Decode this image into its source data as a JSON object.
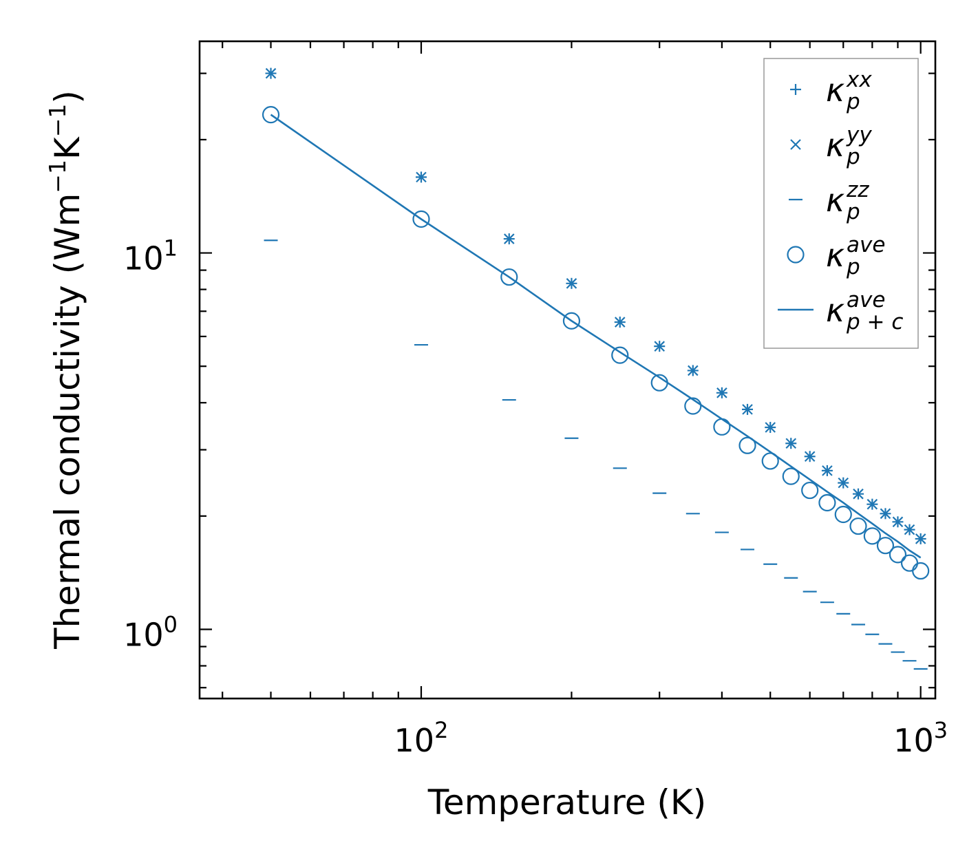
{
  "colors": {
    "series": "#1f77b4",
    "axis": "#000000",
    "legend_border": "#999999"
  },
  "chart_data": {
    "type": "scatter",
    "scale": {
      "x": "log",
      "y": "log"
    },
    "xlabel": "Temperature (K)",
    "ylabel": "Thermal conductivity (Wm⁻¹K⁻¹)",
    "ylabel_parts": {
      "base": "Thermal conductivity (Wm",
      "sup1": "−1",
      "mid": "K",
      "sup2": "−1",
      "end": ")"
    },
    "xlim": [
      36,
      1070
    ],
    "ylim": [
      0.655,
      36.5
    ],
    "xticks": [
      {
        "value": 100,
        "base": "10",
        "exp": "2"
      },
      {
        "value": 1000,
        "base": "10",
        "exp": "3"
      }
    ],
    "yticks": [
      {
        "value": 1,
        "base": "10",
        "exp": "0"
      },
      {
        "value": 10,
        "base": "10",
        "exp": "1"
      }
    ],
    "x": [
      50,
      100,
      150,
      200,
      250,
      300,
      350,
      400,
      450,
      500,
      550,
      600,
      650,
      700,
      750,
      800,
      850,
      900,
      950,
      1000
    ],
    "series": [
      {
        "name": "kappa_p_xx",
        "legend": {
          "base": "κ",
          "sub": "p",
          "sup": "xx"
        },
        "marker": "plus",
        "values": [
          30.0,
          15.9,
          10.9,
          8.3,
          6.55,
          5.65,
          4.87,
          4.25,
          3.84,
          3.44,
          3.12,
          2.88,
          2.64,
          2.45,
          2.29,
          2.15,
          2.03,
          1.93,
          1.84,
          1.74
        ]
      },
      {
        "name": "kappa_p_yy",
        "legend": {
          "base": "κ",
          "sub": "p",
          "sup": "yy"
        },
        "marker": "x",
        "values": [
          30.0,
          15.9,
          10.9,
          8.3,
          6.55,
          5.65,
          4.87,
          4.25,
          3.84,
          3.44,
          3.12,
          2.88,
          2.64,
          2.45,
          2.29,
          2.15,
          2.03,
          1.93,
          1.84,
          1.74
        ]
      },
      {
        "name": "kappa_p_zz",
        "legend": {
          "base": "κ",
          "sub": "p",
          "sup": "zz"
        },
        "marker": "hline",
        "values": [
          10.8,
          5.7,
          4.07,
          3.22,
          2.68,
          2.3,
          2.03,
          1.81,
          1.63,
          1.49,
          1.37,
          1.26,
          1.18,
          1.1,
          1.03,
          0.97,
          0.915,
          0.87,
          0.825,
          0.785
        ]
      },
      {
        "name": "kappa_p_ave",
        "legend": {
          "base": "κ",
          "sub": "p",
          "sup": "ave"
        },
        "marker": "circle",
        "values": [
          23.3,
          12.3,
          8.63,
          6.6,
          5.35,
          4.52,
          3.92,
          3.45,
          3.08,
          2.8,
          2.55,
          2.34,
          2.17,
          2.02,
          1.88,
          1.77,
          1.67,
          1.58,
          1.5,
          1.43
        ]
      },
      {
        "name": "kappa_p+c_ave",
        "legend": {
          "base": "κ",
          "sub": "p + c",
          "sup": "ave"
        },
        "marker": "line",
        "values": [
          23.3,
          12.3,
          8.63,
          6.6,
          5.45,
          4.67,
          4.08,
          3.62,
          3.26,
          2.96,
          2.71,
          2.5,
          2.32,
          2.17,
          2.03,
          1.91,
          1.8,
          1.71,
          1.62,
          1.55
        ]
      }
    ],
    "legend_position": "top-right",
    "grid": false
  }
}
